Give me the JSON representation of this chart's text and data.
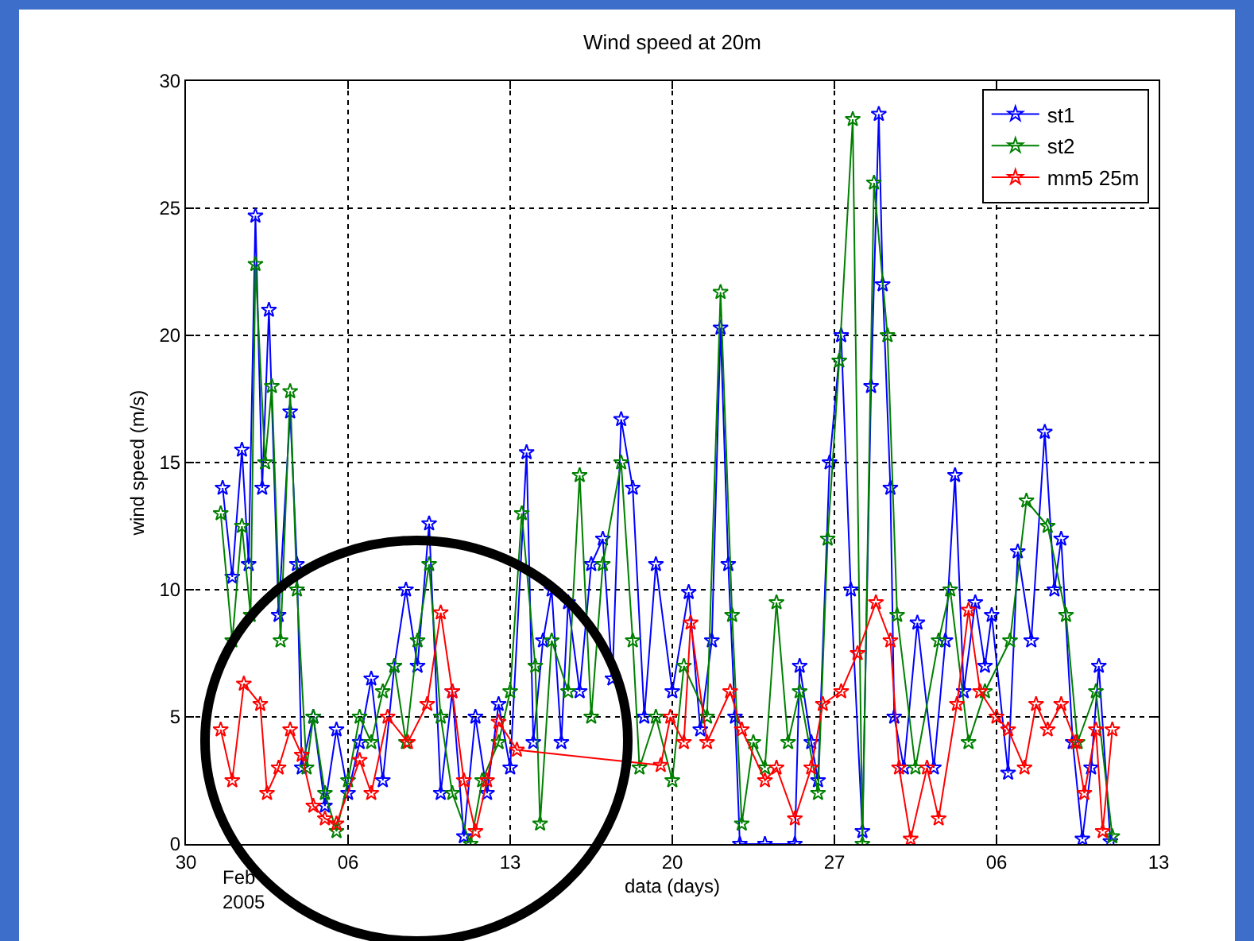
{
  "chart_data": {
    "type": "line",
    "title": "Wind speed at 20m",
    "xlabel": "data (days)",
    "ylabel": "wind speed (m/s)",
    "annotations": [
      "Feb\n2005"
    ],
    "xlim": [
      "2005-01-30",
      "2005-03-13"
    ],
    "xticks": [
      {
        "value": "2005-01-30",
        "label": "30"
      },
      {
        "value": "2005-02-06",
        "label": "06"
      },
      {
        "value": "2005-02-13",
        "label": "13"
      },
      {
        "value": "2005-02-20",
        "label": "20"
      },
      {
        "value": "2005-02-27",
        "label": "27"
      },
      {
        "value": "2005-03-06",
        "label": "06"
      },
      {
        "value": "2005-03-13",
        "label": "13"
      }
    ],
    "ylim": [
      0,
      30
    ],
    "yticks": [
      0,
      5,
      10,
      15,
      20,
      25,
      30
    ],
    "grid": true,
    "legend": "top right",
    "marker": "star",
    "line_style": "solid",
    "series": [
      {
        "name": "st1",
        "color": "#0000ff",
        "x": [
          "2005-01-31T14:00",
          "2005-02-01T00:00",
          "2005-02-01T10:00",
          "2005-02-01T17:00",
          "2005-02-02T00:00",
          "2005-02-02T07:00",
          "2005-02-02T14:00",
          "2005-02-03T00:00",
          "2005-02-03T12:00",
          "2005-02-03T19:00",
          "2005-02-04T00:00",
          "2005-02-04T12:00",
          "2005-02-05T00:00",
          "2005-02-05T12:00",
          "2005-02-06T00:00",
          "2005-02-06T12:00",
          "2005-02-07T00:00",
          "2005-02-07T12:00",
          "2005-02-08T00:00",
          "2005-02-08T12:00",
          "2005-02-09T00:00",
          "2005-02-09T12:00",
          "2005-02-10T00:00",
          "2005-02-10T12:00",
          "2005-02-11T00:00",
          "2005-02-11T12:00",
          "2005-02-12T00:00",
          "2005-02-12T12:00",
          "2005-02-13T00:00",
          "2005-02-13T17:00",
          "2005-02-14T00:00",
          "2005-02-14T10:00",
          "2005-02-14T19:00",
          "2005-02-15T05:00",
          "2005-02-15T12:00",
          "2005-02-16T00:00",
          "2005-02-16T12:00",
          "2005-02-17T00:00",
          "2005-02-17T10:00",
          "2005-02-17T19:00",
          "2005-02-18T07:00",
          "2005-02-18T19:00",
          "2005-02-19T07:00",
          "2005-02-20T00:00",
          "2005-02-20T17:00",
          "2005-02-21T05:00",
          "2005-02-21T17:00",
          "2005-02-22T02:00",
          "2005-02-22T10:00",
          "2005-02-22T17:00",
          "2005-02-22T22:00",
          "2005-02-24T00:00",
          "2005-02-25T07:00",
          "2005-02-25T12:00",
          "2005-02-26T00:00",
          "2005-02-26T07:00",
          "2005-02-26T19:00",
          "2005-02-27T07:00",
          "2005-02-27T17:00",
          "2005-02-28T05:00",
          "2005-02-28T14:00",
          "2005-02-28T22:00",
          "2005-03-01T02:00",
          "2005-03-01T10:00",
          "2005-03-01T14:00",
          "2005-03-02T00:00",
          "2005-03-02T14:00",
          "2005-03-03T07:00",
          "2005-03-03T19:00",
          "2005-03-04T05:00",
          "2005-03-04T14:00",
          "2005-03-05T02:00",
          "2005-03-05T12:00",
          "2005-03-05T19:00",
          "2005-03-06T12:00",
          "2005-03-06T22:00",
          "2005-03-07T12:00",
          "2005-03-08T02:00",
          "2005-03-08T12:00",
          "2005-03-08T19:00",
          "2005-03-09T07:00",
          "2005-03-09T17:00",
          "2005-03-10T02:00",
          "2005-03-10T10:00",
          "2005-03-10T22:00"
        ],
        "values": [
          14,
          10.5,
          15.5,
          11,
          24.7,
          14,
          21,
          9,
          17,
          11,
          3,
          5,
          1.5,
          4.5,
          2,
          4,
          6.5,
          2.5,
          7,
          10,
          7,
          12.6,
          2,
          6,
          0.3,
          5,
          2,
          5.5,
          3,
          15.4,
          4,
          8,
          10,
          4,
          9.5,
          6,
          11,
          12,
          6.5,
          16.7,
          14,
          5,
          11,
          6,
          9.9,
          4.5,
          8,
          20.3,
          11,
          5,
          0,
          0,
          0,
          7,
          4,
          2.5,
          15,
          20,
          10,
          0.5,
          18,
          28.7,
          22,
          14,
          5,
          3,
          8.7,
          3,
          8,
          14.5,
          6,
          9.5,
          7,
          9,
          2.8,
          11.5,
          8,
          16.2,
          10,
          12,
          4,
          0.2,
          3,
          7,
          0.1
        ]
      },
      {
        "name": "st2",
        "color": "#008000",
        "x": [
          "2005-01-31T12:00",
          "2005-02-01T00:00",
          "2005-02-01T10:00",
          "2005-02-01T19:00",
          "2005-02-02T00:00",
          "2005-02-02T10:00",
          "2005-02-02T17:00",
          "2005-02-03T02:00",
          "2005-02-03T12:00",
          "2005-02-03T19:00",
          "2005-02-04T05:00",
          "2005-02-04T12:00",
          "2005-02-05T00:00",
          "2005-02-05T12:00",
          "2005-02-06T00:00",
          "2005-02-06T12:00",
          "2005-02-07T00:00",
          "2005-02-07T12:00",
          "2005-02-08T00:00",
          "2005-02-08T12:00",
          "2005-02-09T00:00",
          "2005-02-09T12:00",
          "2005-02-10T00:00",
          "2005-02-10T12:00",
          "2005-02-11T07:00",
          "2005-02-11T19:00",
          "2005-02-12T12:00",
          "2005-02-13T00:00",
          "2005-02-13T12:00",
          "2005-02-14T02:00",
          "2005-02-14T07:00",
          "2005-02-14T19:00",
          "2005-02-15T12:00",
          "2005-02-16T00:00",
          "2005-02-16T12:00",
          "2005-02-17T00:00",
          "2005-02-17T19:00",
          "2005-02-18T07:00",
          "2005-02-18T14:00",
          "2005-02-19T07:00",
          "2005-02-20T00:00",
          "2005-02-20T12:00",
          "2005-02-21T12:00",
          "2005-02-22T02:00",
          "2005-02-22T14:00",
          "2005-02-23T00:00",
          "2005-02-23T12:00",
          "2005-02-24T00:00",
          "2005-02-24T12:00",
          "2005-02-25T00:00",
          "2005-02-25T12:00",
          "2005-02-26T07:00",
          "2005-02-26T17:00",
          "2005-02-27T05:00",
          "2005-02-27T19:00",
          "2005-02-28T05:00",
          "2005-02-28T17:00",
          "2005-03-01T07:00",
          "2005-03-01T17:00",
          "2005-03-02T12:00",
          "2005-03-03T12:00",
          "2005-03-04T00:00",
          "2005-03-04T19:00",
          "2005-03-05T12:00",
          "2005-03-06T14:00",
          "2005-03-07T07:00",
          "2005-03-08T05:00",
          "2005-03-09T00:00",
          "2005-03-09T12:00",
          "2005-03-10T07:00",
          "2005-03-11T00:00"
        ],
        "values": [
          13,
          8,
          12.5,
          9,
          22.8,
          15,
          18,
          8,
          17.8,
          10,
          3,
          5,
          2,
          0.5,
          2.5,
          5,
          4,
          6,
          7,
          4,
          8,
          11,
          5,
          2,
          0,
          2.5,
          4,
          6,
          13,
          7,
          0.8,
          8,
          6,
          14.5,
          5,
          11,
          15,
          8,
          3,
          5,
          2.5,
          7,
          5,
          21.7,
          9,
          0.8,
          4,
          3,
          9.5,
          4,
          6,
          2,
          12,
          19,
          28.5,
          0,
          26,
          20,
          9,
          3,
          8,
          10,
          4,
          6,
          8,
          13.5,
          12.5,
          9,
          4,
          6,
          0.3
        ]
      },
      {
        "name": "mm5 25m",
        "color": "#ff0000",
        "x": [
          "2005-01-31T12:00",
          "2005-02-01T00:00",
          "2005-02-01T12:00",
          "2005-02-02T05:00",
          "2005-02-02T12:00",
          "2005-02-03T00:00",
          "2005-02-03T12:00",
          "2005-02-04T00:00",
          "2005-02-04T12:00",
          "2005-02-05T00:00",
          "2005-02-05T12:00",
          "2005-02-06T12:00",
          "2005-02-07T00:00",
          "2005-02-07T17:00",
          "2005-02-08T14:00",
          "2005-02-09T10:00",
          "2005-02-10T00:00",
          "2005-02-10T12:00",
          "2005-02-11T00:00",
          "2005-02-11T12:00",
          "2005-02-12T00:00",
          "2005-02-12T12:00",
          "2005-02-13T07:00",
          "2005-02-19T12:00",
          "2005-02-19T22:00",
          "2005-02-20T12:00",
          "2005-02-20T19:00",
          "2005-02-21T12:00",
          "2005-02-22T12:00",
          "2005-02-23T00:00",
          "2005-02-24T00:00",
          "2005-02-24T12:00",
          "2005-02-25T07:00",
          "2005-02-26T00:00",
          "2005-02-26T12:00",
          "2005-02-27T07:00",
          "2005-02-28T00:00",
          "2005-02-28T19:00",
          "2005-03-01T10:00",
          "2005-03-01T19:00",
          "2005-03-02T07:00",
          "2005-03-03T00:00",
          "2005-03-03T12:00",
          "2005-03-04T07:00",
          "2005-03-04T19:00",
          "2005-03-05T07:00",
          "2005-03-06T00:00",
          "2005-03-06T12:00",
          "2005-03-07T05:00",
          "2005-03-07T17:00",
          "2005-03-08T05:00",
          "2005-03-08T19:00",
          "2005-03-09T10:00",
          "2005-03-09T19:00",
          "2005-03-10T07:00",
          "2005-03-10T14:00",
          "2005-03-11T00:00"
        ],
        "values": [
          4.5,
          2.5,
          6.3,
          5.5,
          2,
          3,
          4.5,
          3.5,
          1.5,
          1,
          0.8,
          3.3,
          2,
          5,
          4,
          5.5,
          9.1,
          6,
          2.5,
          0.5,
          2.5,
          4.8,
          3.7,
          3.1,
          5,
          4,
          8.7,
          4,
          6,
          4.5,
          2.5,
          3,
          1,
          3,
          5.5,
          6,
          7.5,
          9.5,
          8,
          3,
          0.2,
          3,
          1,
          5.5,
          9.2,
          6,
          5,
          4.5,
          3,
          5.5,
          4.5,
          5.5,
          4,
          2,
          4.5,
          0.5,
          4.5
        ]
      }
    ]
  }
}
